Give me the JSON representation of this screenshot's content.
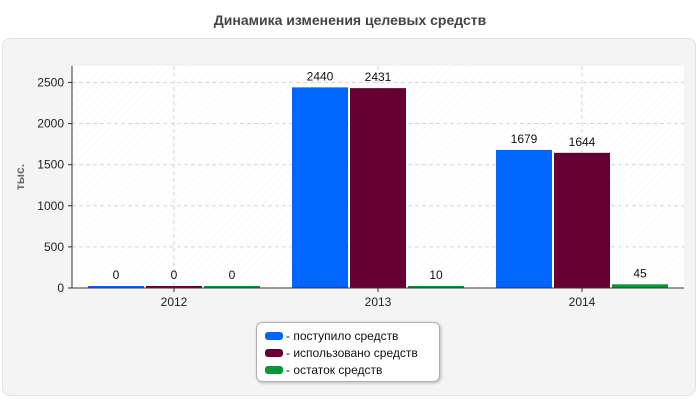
{
  "chart_data": {
    "type": "bar",
    "title": "Динамика изменения целевых средств",
    "ylabel": "тыс.",
    "xlabel": "",
    "categories": [
      "2012",
      "2013",
      "2014"
    ],
    "ylim": [
      0,
      2700
    ],
    "yticks": [
      "0",
      "500",
      "1000",
      "1500",
      "2000",
      "2500"
    ],
    "grid": true,
    "legend_position": "bottom",
    "series": [
      {
        "name": "- поступило средств",
        "values": [
          0,
          2440,
          1679
        ],
        "labels": [
          "0",
          "2440",
          "1679"
        ],
        "color": "#0066ff"
      },
      {
        "name": "- использовано средств",
        "values": [
          0,
          2431,
          1644
        ],
        "labels": [
          "0",
          "2431",
          "1644"
        ],
        "color": "#660033"
      },
      {
        "name": "- остаток средств",
        "values": [
          0,
          10,
          45
        ],
        "labels": [
          "0",
          "10",
          "45"
        ],
        "color": "#009933"
      }
    ]
  }
}
